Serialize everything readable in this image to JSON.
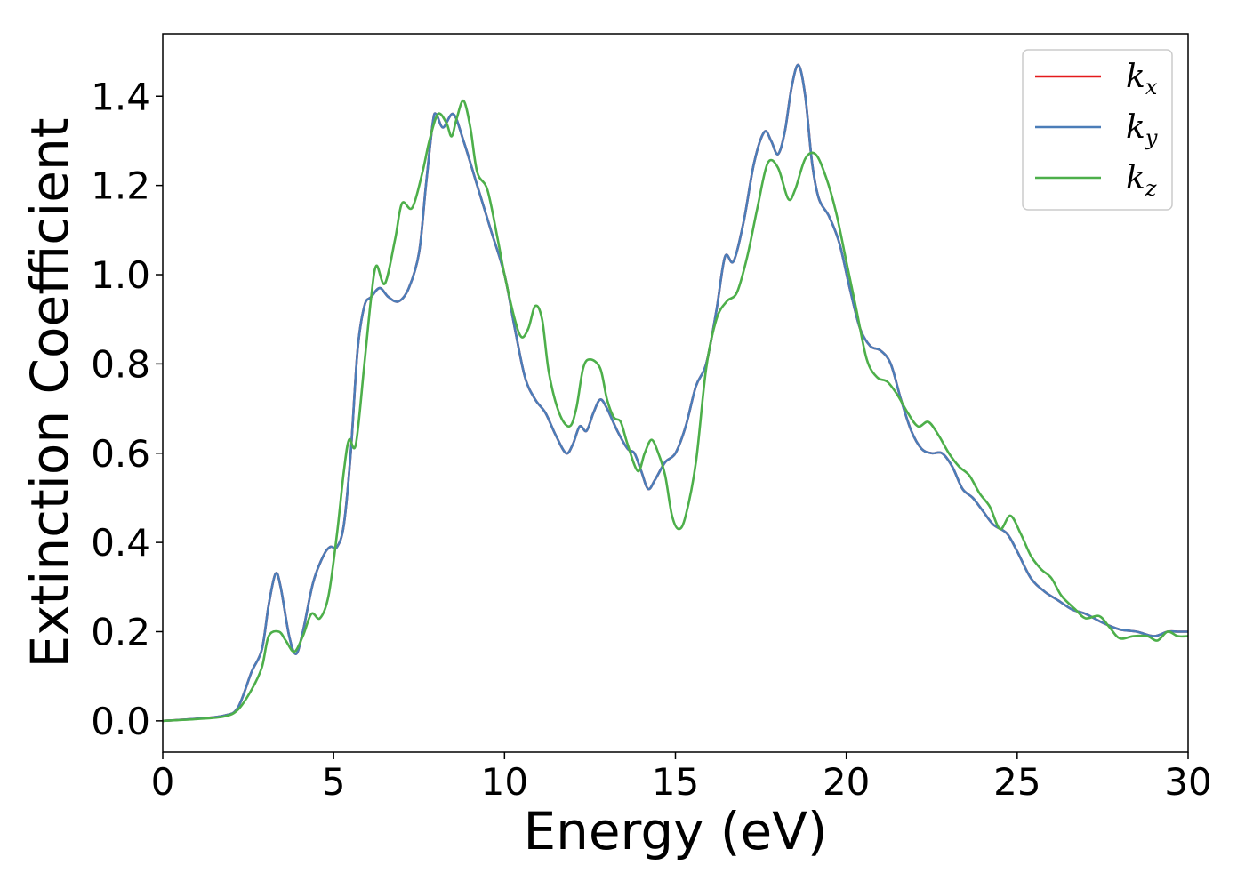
{
  "chart_data": {
    "type": "line",
    "title": "",
    "xlabel": "Energy (eV)",
    "ylabel": "Extinction Coefficient",
    "xlim": [
      0,
      30
    ],
    "ylim": [
      -0.07,
      1.54
    ],
    "x_ticks": [
      0,
      5,
      10,
      15,
      20,
      25,
      30
    ],
    "y_ticks": [
      0.0,
      0.2,
      0.4,
      0.6,
      0.8,
      1.0,
      1.2,
      1.4
    ],
    "grid": false,
    "legend_position": "top-right",
    "series": [
      {
        "name": "k_x",
        "label_main": "k",
        "label_sub": "x",
        "color": "#e41a1c",
        "points": [
          [
            0,
            0
          ],
          [
            1,
            0.005
          ],
          [
            1.8,
            0.012
          ],
          [
            2.2,
            0.03
          ],
          [
            2.6,
            0.11
          ],
          [
            2.9,
            0.16
          ],
          [
            3.1,
            0.26
          ],
          [
            3.3,
            0.33
          ],
          [
            3.45,
            0.3
          ],
          [
            3.7,
            0.19
          ],
          [
            3.9,
            0.15
          ],
          [
            4.1,
            0.2
          ],
          [
            4.4,
            0.31
          ],
          [
            4.7,
            0.37
          ],
          [
            4.9,
            0.39
          ],
          [
            5.1,
            0.39
          ],
          [
            5.3,
            0.44
          ],
          [
            5.5,
            0.6
          ],
          [
            5.7,
            0.83
          ],
          [
            5.9,
            0.93
          ],
          [
            6.1,
            0.95
          ],
          [
            6.35,
            0.97
          ],
          [
            6.6,
            0.95
          ],
          [
            6.9,
            0.94
          ],
          [
            7.2,
            0.97
          ],
          [
            7.5,
            1.05
          ],
          [
            7.7,
            1.2
          ],
          [
            7.9,
            1.34
          ],
          [
            8.0,
            1.36
          ],
          [
            8.2,
            1.33
          ],
          [
            8.5,
            1.36
          ],
          [
            8.8,
            1.3
          ],
          [
            9.2,
            1.2
          ],
          [
            9.6,
            1.1
          ],
          [
            10.0,
            1.0
          ],
          [
            10.3,
            0.88
          ],
          [
            10.6,
            0.77
          ],
          [
            10.9,
            0.72
          ],
          [
            11.2,
            0.69
          ],
          [
            11.5,
            0.64
          ],
          [
            11.8,
            0.6
          ],
          [
            12.0,
            0.62
          ],
          [
            12.2,
            0.66
          ],
          [
            12.4,
            0.65
          ],
          [
            12.6,
            0.69
          ],
          [
            12.8,
            0.72
          ],
          [
            13.0,
            0.7
          ],
          [
            13.3,
            0.65
          ],
          [
            13.6,
            0.61
          ],
          [
            13.8,
            0.6
          ],
          [
            14.0,
            0.56
          ],
          [
            14.2,
            0.52
          ],
          [
            14.4,
            0.54
          ],
          [
            14.7,
            0.58
          ],
          [
            15.0,
            0.6
          ],
          [
            15.3,
            0.66
          ],
          [
            15.6,
            0.75
          ],
          [
            15.9,
            0.8
          ],
          [
            16.2,
            0.92
          ],
          [
            16.45,
            1.04
          ],
          [
            16.7,
            1.03
          ],
          [
            17.0,
            1.12
          ],
          [
            17.3,
            1.25
          ],
          [
            17.6,
            1.32
          ],
          [
            17.8,
            1.3
          ],
          [
            18.0,
            1.27
          ],
          [
            18.2,
            1.32
          ],
          [
            18.4,
            1.42
          ],
          [
            18.6,
            1.47
          ],
          [
            18.8,
            1.4
          ],
          [
            19.0,
            1.25
          ],
          [
            19.2,
            1.17
          ],
          [
            19.5,
            1.13
          ],
          [
            19.8,
            1.07
          ],
          [
            20.1,
            0.97
          ],
          [
            20.4,
            0.88
          ],
          [
            20.7,
            0.84
          ],
          [
            21.0,
            0.83
          ],
          [
            21.3,
            0.8
          ],
          [
            21.6,
            0.72
          ],
          [
            21.9,
            0.65
          ],
          [
            22.2,
            0.61
          ],
          [
            22.5,
            0.6
          ],
          [
            22.8,
            0.6
          ],
          [
            23.1,
            0.57
          ],
          [
            23.4,
            0.52
          ],
          [
            23.7,
            0.5
          ],
          [
            24.0,
            0.47
          ],
          [
            24.3,
            0.44
          ],
          [
            24.7,
            0.42
          ],
          [
            25.0,
            0.38
          ],
          [
            25.4,
            0.32
          ],
          [
            25.8,
            0.29
          ],
          [
            26.2,
            0.27
          ],
          [
            26.6,
            0.25
          ],
          [
            27.0,
            0.24
          ],
          [
            27.5,
            0.22
          ],
          [
            28.0,
            0.205
          ],
          [
            28.5,
            0.2
          ],
          [
            29.0,
            0.19
          ],
          [
            29.4,
            0.2
          ],
          [
            29.7,
            0.2
          ],
          [
            30,
            0.2
          ]
        ]
      },
      {
        "name": "k_y",
        "label_main": "k",
        "label_sub": "y",
        "color": "#4b7db8",
        "points": [
          [
            0,
            0
          ],
          [
            1,
            0.005
          ],
          [
            1.8,
            0.012
          ],
          [
            2.2,
            0.03
          ],
          [
            2.6,
            0.11
          ],
          [
            2.9,
            0.16
          ],
          [
            3.1,
            0.26
          ],
          [
            3.3,
            0.33
          ],
          [
            3.45,
            0.3
          ],
          [
            3.7,
            0.19
          ],
          [
            3.9,
            0.15
          ],
          [
            4.1,
            0.2
          ],
          [
            4.4,
            0.31
          ],
          [
            4.7,
            0.37
          ],
          [
            4.9,
            0.39
          ],
          [
            5.1,
            0.39
          ],
          [
            5.3,
            0.44
          ],
          [
            5.5,
            0.6
          ],
          [
            5.7,
            0.83
          ],
          [
            5.9,
            0.93
          ],
          [
            6.1,
            0.95
          ],
          [
            6.35,
            0.97
          ],
          [
            6.6,
            0.95
          ],
          [
            6.9,
            0.94
          ],
          [
            7.2,
            0.97
          ],
          [
            7.5,
            1.05
          ],
          [
            7.7,
            1.2
          ],
          [
            7.9,
            1.34
          ],
          [
            8.0,
            1.36
          ],
          [
            8.2,
            1.33
          ],
          [
            8.5,
            1.36
          ],
          [
            8.8,
            1.3
          ],
          [
            9.2,
            1.2
          ],
          [
            9.6,
            1.1
          ],
          [
            10.0,
            1.0
          ],
          [
            10.3,
            0.88
          ],
          [
            10.6,
            0.77
          ],
          [
            10.9,
            0.72
          ],
          [
            11.2,
            0.69
          ],
          [
            11.5,
            0.64
          ],
          [
            11.8,
            0.6
          ],
          [
            12.0,
            0.62
          ],
          [
            12.2,
            0.66
          ],
          [
            12.4,
            0.65
          ],
          [
            12.6,
            0.69
          ],
          [
            12.8,
            0.72
          ],
          [
            13.0,
            0.7
          ],
          [
            13.3,
            0.65
          ],
          [
            13.6,
            0.61
          ],
          [
            13.8,
            0.6
          ],
          [
            14.0,
            0.56
          ],
          [
            14.2,
            0.52
          ],
          [
            14.4,
            0.54
          ],
          [
            14.7,
            0.58
          ],
          [
            15.0,
            0.6
          ],
          [
            15.3,
            0.66
          ],
          [
            15.6,
            0.75
          ],
          [
            15.9,
            0.8
          ],
          [
            16.2,
            0.92
          ],
          [
            16.45,
            1.04
          ],
          [
            16.7,
            1.03
          ],
          [
            17.0,
            1.12
          ],
          [
            17.3,
            1.25
          ],
          [
            17.6,
            1.32
          ],
          [
            17.8,
            1.3
          ],
          [
            18.0,
            1.27
          ],
          [
            18.2,
            1.32
          ],
          [
            18.4,
            1.42
          ],
          [
            18.6,
            1.47
          ],
          [
            18.8,
            1.4
          ],
          [
            19.0,
            1.25
          ],
          [
            19.2,
            1.17
          ],
          [
            19.5,
            1.13
          ],
          [
            19.8,
            1.07
          ],
          [
            20.1,
            0.97
          ],
          [
            20.4,
            0.88
          ],
          [
            20.7,
            0.84
          ],
          [
            21.0,
            0.83
          ],
          [
            21.3,
            0.8
          ],
          [
            21.6,
            0.72
          ],
          [
            21.9,
            0.65
          ],
          [
            22.2,
            0.61
          ],
          [
            22.5,
            0.6
          ],
          [
            22.8,
            0.6
          ],
          [
            23.1,
            0.57
          ],
          [
            23.4,
            0.52
          ],
          [
            23.7,
            0.5
          ],
          [
            24.0,
            0.47
          ],
          [
            24.3,
            0.44
          ],
          [
            24.7,
            0.42
          ],
          [
            25.0,
            0.38
          ],
          [
            25.4,
            0.32
          ],
          [
            25.8,
            0.29
          ],
          [
            26.2,
            0.27
          ],
          [
            26.6,
            0.25
          ],
          [
            27.0,
            0.24
          ],
          [
            27.5,
            0.22
          ],
          [
            28.0,
            0.205
          ],
          [
            28.5,
            0.2
          ],
          [
            29.0,
            0.19
          ],
          [
            29.4,
            0.2
          ],
          [
            29.7,
            0.2
          ],
          [
            30,
            0.2
          ]
        ]
      },
      {
        "name": "k_z",
        "label_main": "k",
        "label_sub": "z",
        "color": "#4daf4a",
        "points": [
          [
            0,
            0
          ],
          [
            1,
            0.004
          ],
          [
            1.8,
            0.01
          ],
          [
            2.2,
            0.025
          ],
          [
            2.6,
            0.07
          ],
          [
            2.9,
            0.12
          ],
          [
            3.1,
            0.19
          ],
          [
            3.4,
            0.2
          ],
          [
            3.6,
            0.18
          ],
          [
            3.85,
            0.155
          ],
          [
            4.1,
            0.19
          ],
          [
            4.35,
            0.24
          ],
          [
            4.6,
            0.23
          ],
          [
            4.85,
            0.28
          ],
          [
            5.1,
            0.42
          ],
          [
            5.3,
            0.56
          ],
          [
            5.45,
            0.63
          ],
          [
            5.65,
            0.62
          ],
          [
            5.9,
            0.8
          ],
          [
            6.1,
            0.95
          ],
          [
            6.25,
            1.02
          ],
          [
            6.5,
            0.98
          ],
          [
            6.8,
            1.08
          ],
          [
            7.0,
            1.16
          ],
          [
            7.3,
            1.15
          ],
          [
            7.6,
            1.23
          ],
          [
            7.8,
            1.3
          ],
          [
            8.05,
            1.36
          ],
          [
            8.3,
            1.34
          ],
          [
            8.45,
            1.31
          ],
          [
            8.6,
            1.35
          ],
          [
            8.8,
            1.39
          ],
          [
            9.0,
            1.33
          ],
          [
            9.2,
            1.23
          ],
          [
            9.5,
            1.19
          ],
          [
            9.8,
            1.08
          ],
          [
            10.0,
            1.0
          ],
          [
            10.3,
            0.9
          ],
          [
            10.5,
            0.86
          ],
          [
            10.7,
            0.88
          ],
          [
            10.9,
            0.93
          ],
          [
            11.1,
            0.9
          ],
          [
            11.3,
            0.78
          ],
          [
            11.6,
            0.69
          ],
          [
            11.9,
            0.66
          ],
          [
            12.1,
            0.7
          ],
          [
            12.3,
            0.79
          ],
          [
            12.5,
            0.81
          ],
          [
            12.8,
            0.79
          ],
          [
            13.0,
            0.72
          ],
          [
            13.2,
            0.68
          ],
          [
            13.4,
            0.67
          ],
          [
            13.6,
            0.62
          ],
          [
            13.9,
            0.56
          ],
          [
            14.1,
            0.6
          ],
          [
            14.3,
            0.63
          ],
          [
            14.5,
            0.6
          ],
          [
            14.7,
            0.55
          ],
          [
            14.9,
            0.46
          ],
          [
            15.1,
            0.43
          ],
          [
            15.3,
            0.46
          ],
          [
            15.6,
            0.58
          ],
          [
            15.9,
            0.79
          ],
          [
            16.2,
            0.9
          ],
          [
            16.5,
            0.94
          ],
          [
            16.8,
            0.96
          ],
          [
            17.1,
            1.04
          ],
          [
            17.4,
            1.15
          ],
          [
            17.7,
            1.25
          ],
          [
            18.0,
            1.24
          ],
          [
            18.3,
            1.17
          ],
          [
            18.5,
            1.19
          ],
          [
            18.8,
            1.26
          ],
          [
            19.1,
            1.27
          ],
          [
            19.4,
            1.22
          ],
          [
            19.7,
            1.14
          ],
          [
            20.0,
            1.03
          ],
          [
            20.3,
            0.92
          ],
          [
            20.6,
            0.81
          ],
          [
            20.9,
            0.77
          ],
          [
            21.2,
            0.76
          ],
          [
            21.5,
            0.73
          ],
          [
            21.8,
            0.69
          ],
          [
            22.1,
            0.66
          ],
          [
            22.4,
            0.67
          ],
          [
            22.7,
            0.64
          ],
          [
            23.0,
            0.6
          ],
          [
            23.3,
            0.57
          ],
          [
            23.6,
            0.55
          ],
          [
            23.9,
            0.51
          ],
          [
            24.2,
            0.48
          ],
          [
            24.5,
            0.43
          ],
          [
            24.8,
            0.46
          ],
          [
            25.1,
            0.42
          ],
          [
            25.4,
            0.37
          ],
          [
            25.7,
            0.34
          ],
          [
            26.0,
            0.32
          ],
          [
            26.3,
            0.28
          ],
          [
            26.7,
            0.25
          ],
          [
            27.0,
            0.23
          ],
          [
            27.4,
            0.235
          ],
          [
            27.7,
            0.21
          ],
          [
            28.0,
            0.185
          ],
          [
            28.4,
            0.19
          ],
          [
            28.8,
            0.19
          ],
          [
            29.1,
            0.18
          ],
          [
            29.4,
            0.2
          ],
          [
            29.7,
            0.19
          ],
          [
            30,
            0.19
          ]
        ]
      }
    ]
  }
}
